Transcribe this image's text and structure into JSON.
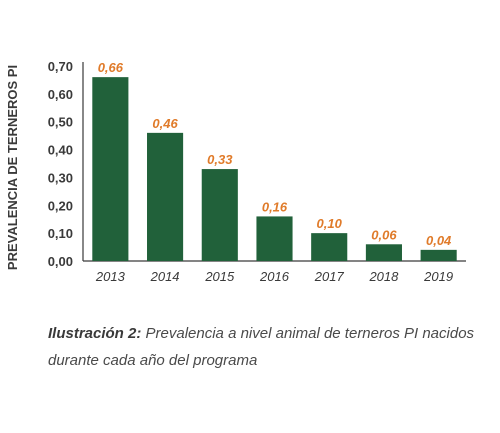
{
  "chart_data": {
    "type": "bar",
    "categories": [
      "2013",
      "2014",
      "2015",
      "2016",
      "2017",
      "2018",
      "2019"
    ],
    "values": [
      0.66,
      0.46,
      0.33,
      0.16,
      0.1,
      0.06,
      0.04
    ],
    "data_labels": [
      "0,66",
      "0,46",
      "0,33",
      "0,16",
      "0,10",
      "0,06",
      "0,04"
    ],
    "ylabel": "PREVALENCIA DE TERNEROS PI",
    "xlabel": "",
    "ylim": [
      0,
      0.7
    ],
    "yticks": [
      "0,00",
      "0,10",
      "0,20",
      "0,30",
      "0,40",
      "0,50",
      "0,60",
      "0,70"
    ],
    "grid": false,
    "legend": "none",
    "colors": {
      "bar": "#21613a",
      "data_label": "#e07b2a",
      "axis": "#3a3a3a"
    }
  },
  "caption": {
    "label": "Ilustración 2:",
    "text": " Prevalencia a nivel animal de terneros PI nacidos durante cada año del programa"
  }
}
